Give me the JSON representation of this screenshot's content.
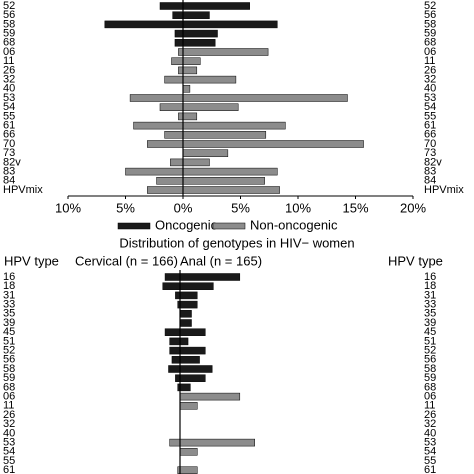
{
  "chart_data": [
    {
      "type": "butterfly",
      "categories": [
        "52",
        "56",
        "58",
        "59",
        "68",
        "06",
        "11",
        "26",
        "32",
        "40",
        "53",
        "54",
        "55",
        "61",
        "66",
        "70",
        "73",
        "82v",
        "83",
        "84",
        "HPVmix"
      ],
      "series": [
        {
          "name": "Oncogenic",
          "color": "#1a1a1a",
          "cervical": [
            2,
            0.9,
            6.8,
            0.7,
            0.7,
            null,
            null,
            null,
            null,
            null,
            null,
            null,
            null,
            null,
            null,
            null,
            null,
            null,
            null,
            null,
            null
          ],
          "anal": [
            5.8,
            2.3,
            8.2,
            3,
            2.8,
            null,
            null,
            null,
            null,
            null,
            null,
            null,
            null,
            null,
            null,
            null,
            null,
            null,
            null,
            null,
            null
          ]
        },
        {
          "name": "Non-oncogenic",
          "color": "#8c8c8c",
          "cervical": [
            null,
            null,
            null,
            null,
            null,
            0.4,
            1,
            0.4,
            1.6,
            0,
            4.6,
            2,
            0.4,
            4.3,
            1.6,
            3.1,
            0,
            1.1,
            5,
            2.3,
            3.1
          ],
          "anal": [
            null,
            null,
            null,
            null,
            null,
            7.4,
            1.5,
            1.2,
            4.6,
            0.6,
            14.3,
            4.8,
            1.2,
            8.9,
            7.2,
            15.7,
            3.9,
            2.3,
            8.2,
            7.1,
            8.4
          ]
        }
      ],
      "xlim": [
        -10,
        20
      ],
      "xticks": [
        {
          "value": -10,
          "label": "10%"
        },
        {
          "value": -5,
          "label": "5%"
        },
        {
          "value": 0,
          "label": "0%"
        },
        {
          "value": 5,
          "label": "5%"
        },
        {
          "value": 10,
          "label": "10%"
        },
        {
          "value": 15,
          "label": "15%"
        },
        {
          "value": 20,
          "label": "20%"
        }
      ]
    },
    {
      "type": "butterfly",
      "title": "Distribution of genotypes in HIV− women",
      "row_header": "HPV type",
      "left_label": "Cervical (n = 166)",
      "right_label": "Anal (n = 165)",
      "categories": [
        "16",
        "18",
        "31",
        "33",
        "35",
        "39",
        "45",
        "51",
        "52",
        "56",
        "58",
        "59",
        "68",
        "06",
        "11",
        "26",
        "32",
        "40",
        "53",
        "54",
        "55",
        "61"
      ],
      "series": [
        {
          "color": "#1a1a1a",
          "cervical": [
            1.3,
            1.5,
            0.4,
            0.2,
            0,
            0,
            1.3,
            0.9,
            0.9,
            0.7,
            1,
            0.4,
            0.2,
            null,
            null,
            null,
            null,
            null,
            null,
            null,
            null,
            null
          ],
          "anal": [
            5.2,
            2.9,
            1.5,
            1.5,
            1,
            1,
            2.2,
            0.7,
            2.2,
            1.7,
            2.8,
            2.2,
            0.9,
            null,
            null,
            null,
            null,
            null,
            null,
            null,
            null,
            null
          ]
        },
        {
          "color": "#8c8c8c",
          "cervical": [
            null,
            null,
            null,
            null,
            null,
            null,
            null,
            null,
            null,
            null,
            null,
            null,
            null,
            0,
            0,
            0,
            0,
            0,
            0.9,
            0,
            0,
            0.2
          ],
          "anal": [
            null,
            null,
            null,
            null,
            null,
            null,
            null,
            null,
            null,
            null,
            null,
            null,
            null,
            5.2,
            1.5,
            0,
            0,
            0,
            6.5,
            1.5,
            0,
            1.5
          ]
        }
      ],
      "xlim": [
        -10,
        20
      ]
    }
  ]
}
